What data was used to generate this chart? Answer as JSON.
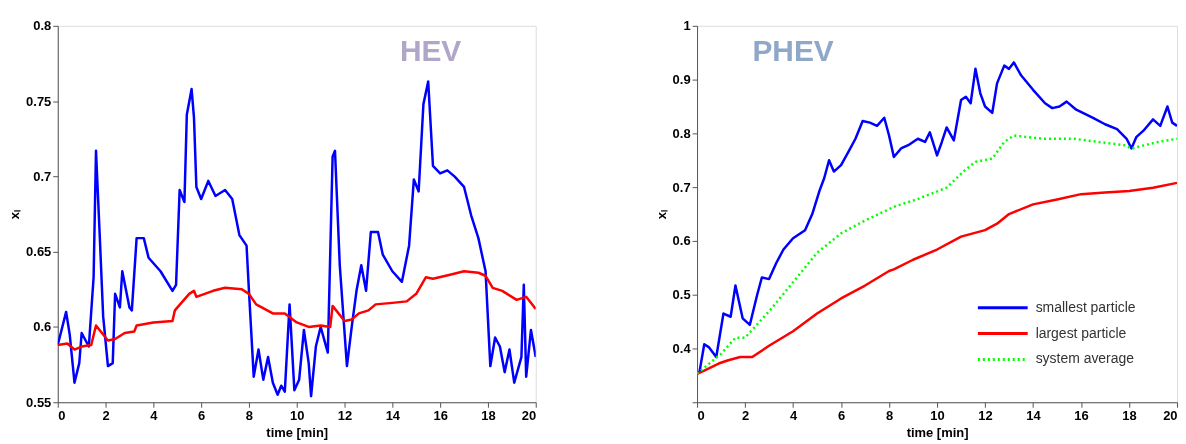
{
  "chart_data": [
    {
      "type": "line",
      "title": "HEV",
      "xlabel": "time [min]",
      "ylabel": "xₗ",
      "xlim": [
        0,
        20
      ],
      "xticks": [
        0,
        2,
        4,
        6,
        8,
        10,
        12,
        14,
        16,
        18,
        20
      ],
      "ylim": [
        0.55,
        0.8
      ],
      "yticks": [
        0.55,
        0.6,
        0.65,
        0.7,
        0.75,
        0.8
      ],
      "grid": false,
      "legend": false,
      "series": [
        {
          "color": "#0000ff",
          "line_style": "solid",
          "x": [
            0,
            0.35,
            0.5,
            0.7,
            0.9,
            1.0,
            1.3,
            1.5,
            1.6,
            1.75,
            1.9,
            2.1,
            2.3,
            2.4,
            2.6,
            2.7,
            3.0,
            3.1,
            3.3,
            3.6,
            3.8,
            4.3,
            4.8,
            4.95,
            5.1,
            5.3,
            5.4,
            5.6,
            5.7,
            5.8,
            6.0,
            6.3,
            6.6,
            7.0,
            7.3,
            7.6,
            7.9,
            8.0,
            8.2,
            8.4,
            8.6,
            8.8,
            9.0,
            9.2,
            9.35,
            9.5,
            9.7,
            9.9,
            10.1,
            10.3,
            10.5,
            10.6,
            10.8,
            11.0,
            11.3,
            11.5,
            11.6,
            11.8,
            12.1,
            12.3,
            12.5,
            12.7,
            12.9,
            13.1,
            13.4,
            13.6,
            14.0,
            14.4,
            14.7,
            14.9,
            15.1,
            15.3,
            15.5,
            15.7,
            16.0,
            16.3,
            16.6,
            17.0,
            17.3,
            17.6,
            17.9,
            18.1,
            18.3,
            18.5,
            18.7,
            18.9,
            19.1,
            19.4,
            19.5,
            19.6,
            19.8,
            20
          ],
          "values": [
            0.588,
            0.61,
            0.595,
            0.563,
            0.576,
            0.596,
            0.587,
            0.633,
            0.717,
            0.663,
            0.607,
            0.574,
            0.576,
            0.622,
            0.613,
            0.637,
            0.613,
            0.611,
            0.659,
            0.659,
            0.646,
            0.637,
            0.624,
            0.628,
            0.691,
            0.683,
            0.741,
            0.758,
            0.739,
            0.693,
            0.685,
            0.697,
            0.687,
            0.691,
            0.685,
            0.661,
            0.654,
            0.624,
            0.567,
            0.585,
            0.565,
            0.58,
            0.563,
            0.555,
            0.561,
            0.557,
            0.615,
            0.558,
            0.565,
            0.598,
            0.576,
            0.554,
            0.587,
            0.6,
            0.583,
            0.713,
            0.717,
            0.641,
            0.574,
            0.6,
            0.624,
            0.641,
            0.624,
            0.663,
            0.663,
            0.648,
            0.637,
            0.63,
            0.654,
            0.698,
            0.69,
            0.748,
            0.763,
            0.707,
            0.702,
            0.704,
            0.7,
            0.693,
            0.674,
            0.659,
            0.637,
            0.574,
            0.593,
            0.587,
            0.57,
            0.585,
            0.563,
            0.58,
            0.628,
            0.567,
            0.598,
            0.58
          ]
        },
        {
          "color": "#ff0000",
          "line_style": "solid",
          "x": [
            0,
            0.4,
            0.7,
            1.0,
            1.4,
            1.6,
            2.1,
            2.4,
            2.8,
            3.2,
            3.3,
            4.0,
            4.8,
            4.9,
            5.5,
            5.7,
            5.8,
            6.5,
            7.0,
            7.7,
            8.0,
            8.3,
            9.0,
            9.5,
            10.0,
            10.5,
            11.0,
            11.4,
            11.5,
            12.0,
            12.3,
            12.6,
            13.0,
            13.3,
            14.0,
            14.6,
            15.0,
            15.4,
            15.7,
            16.5,
            17.0,
            17.6,
            17.9,
            18.2,
            18.6,
            19.2,
            19.6,
            20
          ],
          "values": [
            0.588,
            0.589,
            0.585,
            0.587,
            0.588,
            0.601,
            0.591,
            0.592,
            0.596,
            0.597,
            0.601,
            0.603,
            0.604,
            0.611,
            0.622,
            0.624,
            0.62,
            0.624,
            0.626,
            0.625,
            0.622,
            0.615,
            0.609,
            0.609,
            0.603,
            0.6,
            0.601,
            0.6,
            0.614,
            0.604,
            0.605,
            0.609,
            0.611,
            0.615,
            0.616,
            0.617,
            0.622,
            0.633,
            0.632,
            0.635,
            0.637,
            0.636,
            0.634,
            0.626,
            0.624,
            0.618,
            0.62,
            0.612
          ]
        }
      ]
    },
    {
      "type": "line",
      "title": "PHEV",
      "xlabel": "time [min]",
      "ylabel": "xₗ",
      "xlim": [
        0,
        20
      ],
      "xticks": [
        0,
        2,
        4,
        6,
        8,
        10,
        12,
        14,
        16,
        18,
        20
      ],
      "ylim": [
        0.3,
        1
      ],
      "yticks": [
        {
          "value": 0.3,
          "label": null
        },
        0.4,
        0.5,
        0.6,
        0.7,
        0.8,
        0.9,
        1
      ],
      "grid": false,
      "legend": "bottom right",
      "series": [
        {
          "name": "smallest particle",
          "color": "#0000ff",
          "line_style": "solid",
          "x": [
            0,
            0.1,
            0.3,
            0.5,
            0.8,
            1.1,
            1.4,
            1.6,
            1.9,
            2.2,
            2.5,
            2.7,
            3.0,
            3.3,
            3.6,
            4.0,
            4.5,
            4.8,
            5.1,
            5.3,
            5.5,
            5.7,
            6.0,
            6.3,
            6.6,
            6.9,
            7.2,
            7.5,
            7.8,
            8.0,
            8.2,
            8.5,
            8.8,
            9.2,
            9.5,
            9.7,
            10.0,
            10.2,
            10.4,
            10.7,
            11.0,
            11.2,
            11.4,
            11.6,
            11.8,
            12.0,
            12.3,
            12.5,
            12.8,
            13.0,
            13.2,
            13.5,
            14.0,
            14.5,
            14.8,
            15.1,
            15.4,
            15.8,
            16.5,
            17.0,
            17.5,
            17.9,
            18.1,
            18.3,
            18.6,
            19.0,
            19.3,
            19.6,
            19.8,
            20.0
          ],
          "values": [
            0.353,
            0.356,
            0.408,
            0.402,
            0.384,
            0.465,
            0.459,
            0.517,
            0.456,
            0.444,
            0.499,
            0.532,
            0.529,
            0.559,
            0.584,
            0.605,
            0.62,
            0.65,
            0.693,
            0.717,
            0.75,
            0.729,
            0.741,
            0.765,
            0.79,
            0.823,
            0.82,
            0.814,
            0.829,
            0.796,
            0.756,
            0.772,
            0.778,
            0.79,
            0.784,
            0.802,
            0.759,
            0.784,
            0.811,
            0.787,
            0.862,
            0.868,
            0.856,
            0.92,
            0.875,
            0.85,
            0.838,
            0.893,
            0.926,
            0.92,
            0.932,
            0.908,
            0.881,
            0.856,
            0.847,
            0.85,
            0.859,
            0.844,
            0.829,
            0.817,
            0.808,
            0.79,
            0.772,
            0.793,
            0.805,
            0.826,
            0.814,
            0.85,
            0.82,
            0.814
          ]
        },
        {
          "name": "largest particle",
          "color": "#ff0000",
          "line_style": "solid",
          "x": [
            0,
            0.3,
            0.9,
            1.3,
            1.8,
            2.3,
            3.0,
            4.0,
            5.0,
            6.0,
            7.0,
            8.0,
            8.2,
            9.0,
            10.0,
            11.0,
            12.0,
            12.5,
            13.0,
            14.0,
            15.0,
            16.0,
            17.0,
            18.0,
            19.0,
            20.0
          ],
          "values": [
            0.353,
            0.359,
            0.372,
            0.378,
            0.384,
            0.384,
            0.405,
            0.432,
            0.465,
            0.493,
            0.517,
            0.544,
            0.547,
            0.565,
            0.584,
            0.608,
            0.62,
            0.632,
            0.65,
            0.668,
            0.677,
            0.687,
            0.69,
            0.693,
            0.699,
            0.708
          ]
        },
        {
          "name": "system average",
          "color": "#00ff00",
          "line_style": "dotted",
          "x": [
            0,
            1.0,
            1.6,
            2.0,
            3.0,
            4.0,
            5.0,
            6.0,
            7.0,
            8.0,
            8.3,
            9.2,
            10.4,
            11.1,
            11.6,
            12.3,
            12.8,
            13.2,
            14.4,
            15.7,
            17.8,
            18.1,
            19.2,
            20.0
          ],
          "values": [
            0.353,
            0.39,
            0.42,
            0.42,
            0.469,
            0.523,
            0.578,
            0.614,
            0.638,
            0.659,
            0.665,
            0.678,
            0.699,
            0.729,
            0.747,
            0.753,
            0.784,
            0.796,
            0.79,
            0.79,
            0.778,
            0.772,
            0.784,
            0.79
          ]
        }
      ]
    }
  ]
}
